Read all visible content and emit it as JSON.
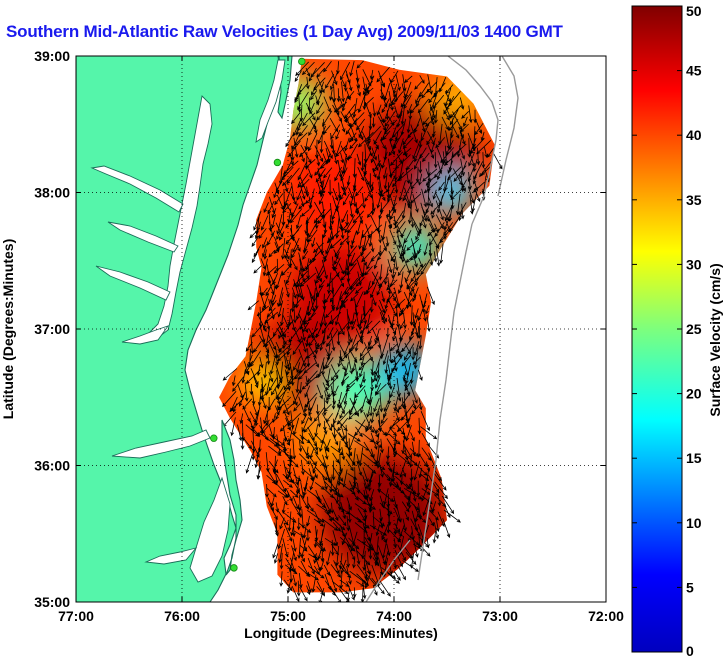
{
  "title": "Southern Mid-Atlantic Raw Velocities (1 Day Avg) 2009/11/03 1400 GMT",
  "map": {
    "xlabel": "Longitude (Degrees:Minutes)",
    "ylabel": "Latitude (Degrees:Minutes)",
    "lon_range": [
      -77,
      -72
    ],
    "lat_range": [
      35,
      39
    ],
    "x_ticks": [
      {
        "value": -77,
        "label": "77:00"
      },
      {
        "value": -76,
        "label": "76:00"
      },
      {
        "value": -75,
        "label": "75:00"
      },
      {
        "value": -74,
        "label": "74:00"
      },
      {
        "value": -73,
        "label": "73:00"
      },
      {
        "value": -72,
        "label": "72:00"
      }
    ],
    "y_ticks": [
      {
        "value": 39,
        "label": "39:00"
      },
      {
        "value": 38,
        "label": "38:00"
      },
      {
        "value": 37,
        "label": "37:00"
      },
      {
        "value": 36,
        "label": "36:00"
      },
      {
        "value": 35,
        "label": "35:00"
      }
    ],
    "grid": "dotted",
    "land_color": "#55f5aa",
    "water_color": "#ffffff",
    "coastline_color": "#1a6d58",
    "station_color": "#33dd33",
    "stations": [
      {
        "lon": -74.87,
        "lat": 38.96
      },
      {
        "lon": -75.1,
        "lat": 38.22
      },
      {
        "lon": -75.7,
        "lat": 36.2
      },
      {
        "lon": -75.51,
        "lat": 35.25
      }
    ]
  },
  "colorbar": {
    "label": "Surface Velocity (cm/s)",
    "min": 0,
    "max": 50,
    "ticks": [
      {
        "value": 0,
        "label": "0"
      },
      {
        "value": 5,
        "label": "5"
      },
      {
        "value": 10,
        "label": "10"
      },
      {
        "value": 15,
        "label": "15"
      },
      {
        "value": 20,
        "label": "20"
      },
      {
        "value": 25,
        "label": "25"
      },
      {
        "value": 30,
        "label": "30"
      },
      {
        "value": 35,
        "label": "35"
      },
      {
        "value": 40,
        "label": "40"
      },
      {
        "value": 45,
        "label": "45"
      },
      {
        "value": 50,
        "label": "50"
      }
    ],
    "colormap": "jet"
  },
  "velocity_field": {
    "domain_outline": [
      [
        -74.87,
        38.98
      ],
      [
        -74.3,
        38.97
      ],
      [
        -73.95,
        38.9
      ],
      [
        -73.5,
        38.85
      ],
      [
        -73.25,
        38.65
      ],
      [
        -73.05,
        38.35
      ],
      [
        -73.1,
        38.05
      ],
      [
        -73.35,
        37.85
      ],
      [
        -73.55,
        37.6
      ],
      [
        -73.7,
        37.4
      ],
      [
        -73.65,
        37.2
      ],
      [
        -73.7,
        36.95
      ],
      [
        -73.75,
        36.75
      ],
      [
        -73.8,
        36.55
      ],
      [
        -73.7,
        36.42
      ],
      [
        -73.7,
        36.2
      ],
      [
        -73.55,
        35.9
      ],
      [
        -73.5,
        35.6
      ],
      [
        -73.75,
        35.4
      ],
      [
        -73.95,
        35.25
      ],
      [
        -74.2,
        35.1
      ],
      [
        -74.5,
        35.07
      ],
      [
        -74.95,
        35.07
      ],
      [
        -75.1,
        35.2
      ],
      [
        -75.1,
        35.5
      ],
      [
        -75.2,
        35.7
      ],
      [
        -75.25,
        35.95
      ],
      [
        -75.35,
        36.1
      ],
      [
        -75.55,
        36.35
      ],
      [
        -75.65,
        36.5
      ],
      [
        -75.55,
        36.65
      ],
      [
        -75.4,
        36.8
      ],
      [
        -75.35,
        37.0
      ],
      [
        -75.3,
        37.2
      ],
      [
        -75.25,
        37.45
      ],
      [
        -75.3,
        37.6
      ],
      [
        -75.3,
        37.8
      ],
      [
        -75.2,
        38.0
      ],
      [
        -75.05,
        38.2
      ],
      [
        -74.98,
        38.4
      ],
      [
        -74.95,
        38.6
      ],
      [
        -74.9,
        38.8
      ]
    ],
    "speed_regions": [
      {
        "lon": -73.75,
        "lat": 38.25,
        "r": 0.55,
        "speed": 48
      },
      {
        "lon": -74.55,
        "lat": 38.0,
        "r": 0.45,
        "speed": 42
      },
      {
        "lon": -74.5,
        "lat": 37.25,
        "r": 0.5,
        "speed": 46
      },
      {
        "lon": -74.85,
        "lat": 36.75,
        "r": 0.45,
        "speed": 47
      },
      {
        "lon": -74.1,
        "lat": 35.65,
        "r": 0.6,
        "speed": 49
      },
      {
        "lon": -74.35,
        "lat": 36.55,
        "r": 0.3,
        "speed": 22
      },
      {
        "lon": -73.9,
        "lat": 36.7,
        "r": 0.25,
        "speed": 15
      },
      {
        "lon": -74.9,
        "lat": 38.65,
        "r": 0.25,
        "speed": 26
      },
      {
        "lon": -73.4,
        "lat": 38.7,
        "r": 0.25,
        "speed": 35
      },
      {
        "lon": -74.65,
        "lat": 36.2,
        "r": 0.3,
        "speed": 36
      },
      {
        "lon": -73.8,
        "lat": 37.6,
        "r": 0.22,
        "speed": 20
      },
      {
        "lon": -73.45,
        "lat": 38.0,
        "r": 0.2,
        "speed": 16
      },
      {
        "lon": -75.25,
        "lat": 36.6,
        "r": 0.2,
        "speed": 33
      }
    ]
  }
}
